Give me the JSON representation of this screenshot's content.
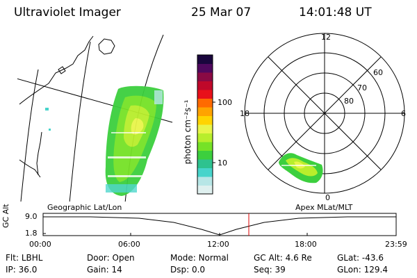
{
  "header": {
    "instrument": "Ultraviolet Imager",
    "date": "25 Mar 07",
    "time": "14:01:48 UT"
  },
  "geo_panel": {
    "label": "Geographic Lat/Lon"
  },
  "polar_panel": {
    "label": "Apex MLat/MLT",
    "mlt_labels": {
      "top": "12",
      "left": "18",
      "right": "6",
      "bottom": "0"
    },
    "lat_labels": [
      "80",
      "70",
      "60"
    ]
  },
  "colorbar": {
    "unit_label": "photon cm⁻²s⁻¹",
    "tick_labels": [
      "100",
      "10"
    ],
    "colors": [
      "#dff0ef",
      "#b7e6e6",
      "#47d4cb",
      "#2ec28f",
      "#3ccf3e",
      "#76e227",
      "#b8ee2c",
      "#e8f54a",
      "#ffd400",
      "#ffa300",
      "#ff6a00",
      "#e8101a",
      "#c0082a",
      "#8a0a44",
      "#50085e",
      "#1a063d"
    ]
  },
  "timeline": {
    "axis_title": "GC Alt",
    "y_ticks": [
      "9.0",
      "1.8"
    ],
    "x_ticks": [
      "00:00",
      "06:00",
      "12:00",
      "18:00",
      "23:59"
    ],
    "current_marker_color": "#dd0000"
  },
  "status": {
    "row1": [
      {
        "label": "Flt:",
        "value": "LBHL"
      },
      {
        "label": "Door:",
        "value": "Open"
      },
      {
        "label": "Mode:",
        "value": "Normal"
      },
      {
        "label": "GC Alt:",
        "value": "4.6 Re"
      },
      {
        "label": "GLat:",
        "value": "-43.6"
      }
    ],
    "row2": [
      {
        "label": "IP:",
        "value": "36.0"
      },
      {
        "label": "Gain:",
        "value": "14"
      },
      {
        "label": "Dsp:",
        "value": "0.0"
      },
      {
        "label": "Seq:",
        "value": "39"
      },
      {
        "label": "GLon:",
        "value": "129.4"
      }
    ]
  }
}
